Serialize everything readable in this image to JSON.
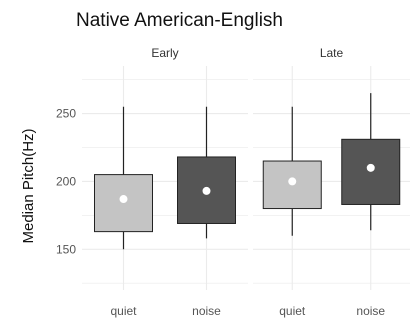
{
  "chart_data": {
    "type": "boxplot",
    "title": "Native American-English",
    "ylabel": "Median Pitch(Hz)",
    "xlabel": "",
    "ylim": [
      120,
      285
    ],
    "yticks": [
      150,
      200,
      250
    ],
    "grid": true,
    "categories": [
      "quiet",
      "noise"
    ],
    "colors": {
      "quiet": "#c4c4c4",
      "noise": "#555555",
      "mean_marker": "#ffffff",
      "line": "#222222",
      "grid": "#ebebeb"
    },
    "panels": [
      {
        "name": "Early",
        "boxes": [
          {
            "category": "quiet",
            "whisker_low": 150,
            "q1": 163,
            "q3": 205,
            "whisker_high": 255,
            "mean": 187
          },
          {
            "category": "noise",
            "whisker_low": 158,
            "q1": 169,
            "q3": 218,
            "whisker_high": 255,
            "mean": 193
          }
        ]
      },
      {
        "name": "Late",
        "boxes": [
          {
            "category": "quiet",
            "whisker_low": 160,
            "q1": 180,
            "q3": 215,
            "whisker_high": 255,
            "mean": 200
          },
          {
            "category": "noise",
            "whisker_low": 164,
            "q1": 183,
            "q3": 231,
            "whisker_high": 265,
            "mean": 210
          }
        ]
      }
    ]
  }
}
